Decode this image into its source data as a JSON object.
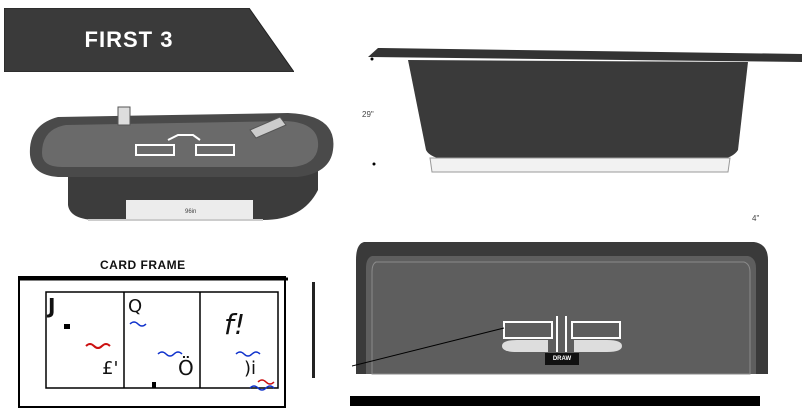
{
  "banner": {
    "title": "FIRST 3"
  },
  "dimensions": {
    "height_label": "29\"",
    "depth_label": "4\"",
    "width_label": "96in"
  },
  "card_frame": {
    "title": "CARD FRAME",
    "cards": [
      {
        "rank": "J",
        "symbol": "£'"
      },
      {
        "rank": "Q",
        "symbol": "Ö"
      },
      {
        "rank": "f!",
        "symbol": ")i"
      }
    ]
  },
  "layout_detail": {
    "draw_label": "DRAW"
  },
  "colors": {
    "banner": "#3a3a3a",
    "table_wood": "#3c3c3c",
    "felt": "#5a5a5a",
    "accent_red": "#cc1111",
    "accent_blue": "#1133cc"
  }
}
